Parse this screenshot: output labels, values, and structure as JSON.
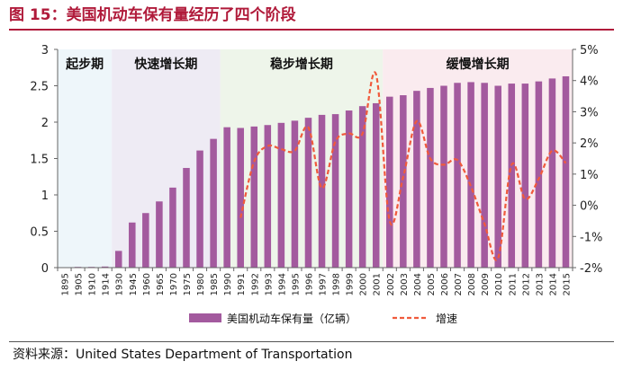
{
  "title": "图 15：美国机动车保有量经历了四个阶段",
  "source": "资料来源：United States Department of Transportation",
  "chart_data": {
    "type": "bar",
    "categories": [
      "1895",
      "1905",
      "1910",
      "1914",
      "1930",
      "1945",
      "1960",
      "1965",
      "1970",
      "1975",
      "1980",
      "1985",
      "1990",
      "1991",
      "1992",
      "1993",
      "1994",
      "1995",
      "1996",
      "1997",
      "1998",
      "1999",
      "2000",
      "2001",
      "2002",
      "2003",
      "2004",
      "2005",
      "2006",
      "2007",
      "2008",
      "2009",
      "2010",
      "2011",
      "2012",
      "2013",
      "2014",
      "2015"
    ],
    "series": [
      {
        "name": "美国机动车保有量（亿辆）",
        "type": "bar",
        "axis": "left",
        "color": "#a35a9e",
        "values": [
          0.005,
          0.01,
          0.01,
          0.015,
          0.23,
          0.62,
          0.75,
          0.91,
          1.1,
          1.37,
          1.61,
          1.77,
          1.93,
          1.92,
          1.94,
          1.96,
          1.99,
          2.02,
          2.06,
          2.1,
          2.11,
          2.16,
          2.22,
          2.26,
          2.35,
          2.37,
          2.43,
          2.47,
          2.5,
          2.54,
          2.55,
          2.54,
          2.5,
          2.53,
          2.53,
          2.56,
          2.6,
          2.63
        ]
      },
      {
        "name": "增速",
        "type": "line",
        "axis": "right",
        "style": "dashed",
        "color": "#f05a3c",
        "values": [
          null,
          null,
          null,
          null,
          null,
          null,
          null,
          null,
          null,
          null,
          null,
          null,
          null,
          -0.4,
          1.4,
          1.9,
          1.8,
          1.75,
          2.5,
          0.55,
          2.05,
          2.3,
          2.3,
          4.2,
          -0.5,
          0.9,
          2.7,
          1.5,
          1.3,
          1.45,
          0.6,
          -0.6,
          -1.7,
          1.3,
          0.2,
          0.85,
          1.75,
          1.35
        ]
      }
    ],
    "ylim_left": [
      0,
      3
    ],
    "yticks_left": [
      "0",
      "0.5",
      "1",
      "1.5",
      "2",
      "2.5",
      "3"
    ],
    "ylim_right": [
      -2,
      5
    ],
    "yticks_right": [
      "-2%",
      "-1%",
      "0%",
      "1%",
      "2%",
      "3%",
      "4%",
      "5%"
    ],
    "phases": [
      {
        "label": "起步期",
        "from": 0,
        "to": 3,
        "color": "#eef6fa"
      },
      {
        "label": "快速增长期",
        "from": 4,
        "to": 11,
        "color": "#eeebf4"
      },
      {
        "label": "稳步增长期",
        "from": 12,
        "to": 23,
        "color": "#eef5ea"
      },
      {
        "label": "缓慢增长期",
        "from": 24,
        "to": 37,
        "color": "#faebef"
      }
    ],
    "legend_position": "bottom"
  }
}
